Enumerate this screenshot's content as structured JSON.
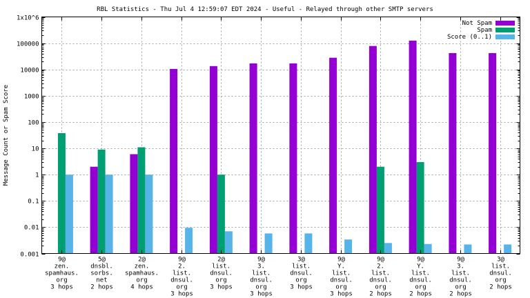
{
  "chart_data": {
    "type": "bar",
    "title": "RBL Statistics - Thu Jul  4 12:59:07 EDT 2024 - Useful - Relayed through other SMTP servers",
    "xlabel": "",
    "ylabel": "Message Count or Spam Score",
    "yscale": "log",
    "ylim": [
      0.001,
      1000000
    ],
    "yticks": [
      {
        "value": 0.001,
        "label": "0.001"
      },
      {
        "value": 0.01,
        "label": "0.01"
      },
      {
        "value": 0.1,
        "label": "0.1"
      },
      {
        "value": 1,
        "label": "1"
      },
      {
        "value": 10,
        "label": "10"
      },
      {
        "value": 100,
        "label": "100"
      },
      {
        "value": 1000,
        "label": "1000"
      },
      {
        "value": 10000,
        "label": "10000"
      },
      {
        "value": 100000,
        "label": "100000"
      },
      {
        "value": 1000000,
        "label": "1x10^6"
      }
    ],
    "grid": true,
    "legend_position": "top-right",
    "categories": [
      [
        "9@",
        "zen.",
        "spamhaus.",
        "org",
        "3 hops"
      ],
      [
        "5@",
        "dnsbl.",
        "sorbs.",
        "net",
        "2 hops"
      ],
      [
        "2@",
        "zen.",
        "spamhaus.",
        "org",
        "4 hops"
      ],
      [
        "9@",
        "2.",
        "list.",
        "dnsul.",
        "org",
        "3 hops"
      ],
      [
        "2@",
        "list.",
        "dnsul.",
        "org",
        "3 hops"
      ],
      [
        "9@",
        "3.",
        "list.",
        "dnsul.",
        "org",
        "3 hops"
      ],
      [
        "3@",
        "list.",
        "dnsul.",
        "org",
        "3 hops"
      ],
      [
        "9@",
        "Y.",
        "list.",
        "dnsul.",
        "org",
        "3 hops"
      ],
      [
        "9@",
        "2.",
        "list.",
        "dnsul.",
        "org",
        "2 hops"
      ],
      [
        "9@",
        "Y.",
        "list.",
        "dnsul.",
        "org",
        "2 hops"
      ],
      [
        "9@",
        "3.",
        "list.",
        "dnsul.",
        "org",
        "2 hops"
      ],
      [
        "3@",
        "list.",
        "dnsul.",
        "org",
        "2 hops"
      ]
    ],
    "series": [
      {
        "name": "Not Spam",
        "color": "#9400d3",
        "values": [
          null,
          2,
          6,
          10500,
          13500,
          17000,
          17000,
          28000,
          78000,
          125000,
          42000,
          42000
        ]
      },
      {
        "name": "Spam",
        "color": "#009e73",
        "values": [
          38,
          9,
          11,
          null,
          1,
          null,
          null,
          null,
          2,
          3,
          null,
          null
        ]
      },
      {
        "name": "Score (0..1)",
        "color": "#56b4e9",
        "values": [
          1,
          1,
          1,
          0.0095,
          0.007,
          0.0058,
          0.0058,
          0.0034,
          0.0025,
          0.0023,
          0.0022,
          0.0022
        ]
      }
    ]
  }
}
